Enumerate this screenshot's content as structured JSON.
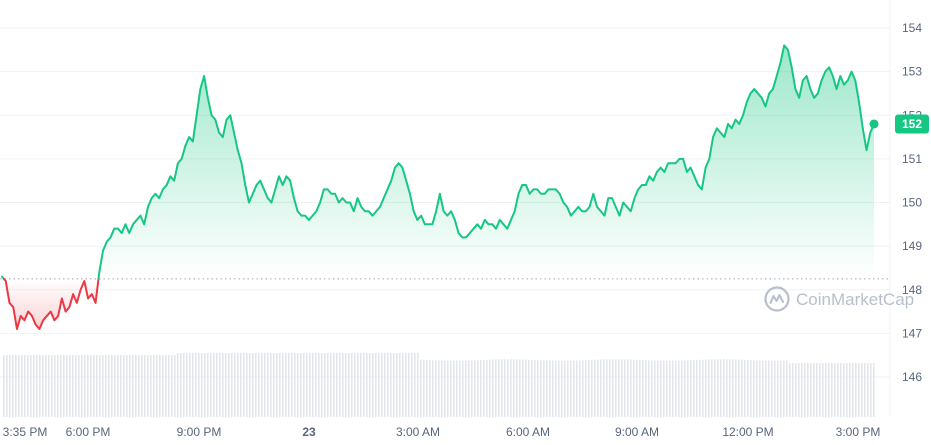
{
  "chart_data": {
    "type": "area",
    "y_axis": {
      "ticks": [
        "146",
        "147",
        "148",
        "149",
        "150",
        "151",
        "152",
        "153",
        "154"
      ],
      "range": [
        145.1,
        154.5
      ]
    },
    "x_axis": {
      "labels": [
        "3:35 PM",
        "6:00 PM",
        "9:00 PM",
        "23",
        "3:00 AM",
        "6:00 AM",
        "9:00 AM",
        "12:00 PM",
        "3:00 PM"
      ]
    },
    "reference_price": 148.25,
    "current_price": "152",
    "current_value": 151.8,
    "colors": {
      "up": "#16c784",
      "down": "#ea3943",
      "volume": "#e3e6eb",
      "grid": "#eff2f5",
      "badge": "#16c784"
    },
    "price_series": [
      148.3,
      148.2,
      147.7,
      147.6,
      147.1,
      147.4,
      147.3,
      147.5,
      147.4,
      147.2,
      147.1,
      147.3,
      147.4,
      147.5,
      147.3,
      147.4,
      147.8,
      147.5,
      147.6,
      147.9,
      147.7,
      148.0,
      148.2,
      147.8,
      147.9,
      147.7,
      148.4,
      148.9,
      149.1,
      149.2,
      149.4,
      149.4,
      149.3,
      149.5,
      149.3,
      149.5,
      149.6,
      149.7,
      149.5,
      149.9,
      150.1,
      150.2,
      150.1,
      150.3,
      150.4,
      150.6,
      150.5,
      150.9,
      151.0,
      151.3,
      151.5,
      151.4,
      152.0,
      152.6,
      152.9,
      152.4,
      152.0,
      151.9,
      151.6,
      151.5,
      151.9,
      152.0,
      151.6,
      151.2,
      150.9,
      150.4,
      150.0,
      150.2,
      150.4,
      150.5,
      150.3,
      150.1,
      150.0,
      150.3,
      150.6,
      150.4,
      150.6,
      150.5,
      150.1,
      149.8,
      149.7,
      149.7,
      149.6,
      149.7,
      149.8,
      150.0,
      150.3,
      150.3,
      150.2,
      150.2,
      150.0,
      150.1,
      150.0,
      150.0,
      149.8,
      150.1,
      149.9,
      149.8,
      149.8,
      149.7,
      149.8,
      149.9,
      150.1,
      150.3,
      150.5,
      150.8,
      150.9,
      150.8,
      150.5,
      150.2,
      149.8,
      149.6,
      149.7,
      149.5,
      149.5,
      149.5,
      149.8,
      150.2,
      149.8,
      149.7,
      149.8,
      149.6,
      149.3,
      149.2,
      149.2,
      149.3,
      149.4,
      149.5,
      149.4,
      149.6,
      149.5,
      149.5,
      149.4,
      149.6,
      149.5,
      149.4,
      149.6,
      149.8,
      150.2,
      150.4,
      150.4,
      150.2,
      150.3,
      150.3,
      150.2,
      150.2,
      150.3,
      150.3,
      150.3,
      150.2,
      150.0,
      149.9,
      149.7,
      149.8,
      149.9,
      149.8,
      149.8,
      149.9,
      150.2,
      149.9,
      149.8,
      149.7,
      150.1,
      150.1,
      149.9,
      149.7,
      150.0,
      149.9,
      149.8,
      150.1,
      150.3,
      150.4,
      150.4,
      150.6,
      150.5,
      150.7,
      150.8,
      150.7,
      150.9,
      150.9,
      150.9,
      151.0,
      151.0,
      150.7,
      150.8,
      150.6,
      150.4,
      150.3,
      150.8,
      151.0,
      151.5,
      151.7,
      151.6,
      151.5,
      151.8,
      151.7,
      151.9,
      151.8,
      152.0,
      152.3,
      152.5,
      152.6,
      152.5,
      152.4,
      152.2,
      152.5,
      152.6,
      152.9,
      153.2,
      153.6,
      153.5,
      153.1,
      152.6,
      152.4,
      152.8,
      152.9,
      152.6,
      152.4,
      152.5,
      152.8,
      153.0,
      153.1,
      152.9,
      152.6,
      152.9,
      152.7,
      152.8,
      153.0,
      152.8,
      152.3,
      151.7,
      151.2,
      151.6,
      151.8
    ]
  },
  "price_badge": {
    "value": "152"
  },
  "watermark": {
    "text": "CoinMarketCap"
  }
}
